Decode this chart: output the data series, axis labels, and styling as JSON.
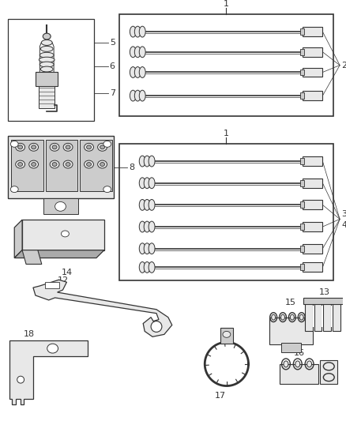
{
  "bg_color": "#ffffff",
  "fg_color": "#111111",
  "lc": "#333333",
  "wire_lc": "#555555",
  "fill_light": "#e8e8e8",
  "fill_mid": "#cccccc",
  "fill_dark": "#aaaaaa"
}
